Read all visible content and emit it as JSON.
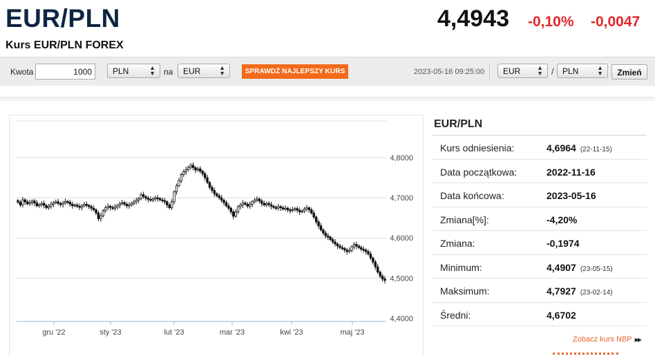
{
  "header": {
    "title": "EUR/PLN",
    "subtitle": "Kurs EUR/PLN FOREX",
    "price": "4,4943",
    "change_pct": "-0,10%",
    "change_abs": "-0,0047",
    "change_color": "#e0262b"
  },
  "toolbar": {
    "amount_label": "Kwota",
    "amount_value": "1000",
    "from_currency": "PLN",
    "na_label": "na",
    "to_currency": "EUR",
    "best_rate_button": "SPRAWDŹ NAJLEPSZY KURS",
    "best_rate_color": "#f26a1b",
    "timestamp": "2023-05-16 09:25:00",
    "pair_base": "EUR",
    "pair_sep": "/",
    "pair_quote": "PLN",
    "change_button": "Zmień"
  },
  "chart_data": {
    "type": "candlestick",
    "x_tick_labels": [
      "gru '22",
      "sty '23",
      "lut '23",
      "mar '23",
      "kwi '23",
      "maj '23"
    ],
    "y_tick_labels": [
      "4,8000",
      "4,7000",
      "4,6000",
      "4,5000",
      "4,4000"
    ],
    "ylim": [
      4.4,
      4.8
    ],
    "grid": true,
    "x_start": "2022-11-16",
    "x_end": "2023-05-16",
    "close_series": [
      4.689,
      4.682,
      4.695,
      4.69,
      4.685,
      4.688,
      4.692,
      4.687,
      4.68,
      4.683,
      4.686,
      4.681,
      4.675,
      4.679,
      4.684,
      4.688,
      4.69,
      4.686,
      4.683,
      4.687,
      4.691,
      4.689,
      4.684,
      4.68,
      4.682,
      4.679,
      4.676,
      4.68,
      4.684,
      4.681,
      4.678,
      4.674,
      4.67,
      4.662,
      4.648,
      4.655,
      4.668,
      4.675,
      4.679,
      4.676,
      4.673,
      4.677,
      4.681,
      4.685,
      4.688,
      4.684,
      4.68,
      4.682,
      4.686,
      4.69,
      4.694,
      4.698,
      4.708,
      4.703,
      4.699,
      4.696,
      4.694,
      4.697,
      4.7,
      4.698,
      4.695,
      4.693,
      4.69,
      4.682,
      4.675,
      4.69,
      4.715,
      4.73,
      4.742,
      4.758,
      4.765,
      4.77,
      4.776,
      4.781,
      4.775,
      4.769,
      4.772,
      4.766,
      4.76,
      4.75,
      4.738,
      4.726,
      4.718,
      4.71,
      4.705,
      4.7,
      4.694,
      4.688,
      4.68,
      4.674,
      4.665,
      4.654,
      4.665,
      4.678,
      4.682,
      4.687,
      4.684,
      4.679,
      4.684,
      4.69,
      4.694,
      4.697,
      4.692,
      4.686,
      4.682,
      4.686,
      4.683,
      4.679,
      4.676,
      4.674,
      4.678,
      4.675,
      4.672,
      4.674,
      4.67,
      4.668,
      4.671,
      4.673,
      4.669,
      4.665,
      4.667,
      4.672,
      4.675,
      4.67,
      4.662,
      4.652,
      4.64,
      4.63,
      4.62,
      4.612,
      4.605,
      4.602,
      4.596,
      4.59,
      4.585,
      4.58,
      4.576,
      4.574,
      4.57,
      4.566,
      4.569,
      4.578,
      4.584,
      4.58,
      4.576,
      4.572,
      4.57,
      4.566,
      4.56,
      4.55,
      4.54,
      4.528,
      4.515,
      4.505,
      4.498,
      4.494
    ]
  },
  "stats": {
    "title": "EUR/PLN",
    "rows": [
      {
        "key": "Kurs odniesienia:",
        "value": "4,6964",
        "date": "(22-11-15)"
      },
      {
        "key": "Data początkowa:",
        "value": "2022-11-16",
        "date": ""
      },
      {
        "key": "Data końcowa:",
        "value": "2023-05-16",
        "date": ""
      },
      {
        "key": "Zmiana[%]:",
        "value": "-4,20%",
        "date": ""
      },
      {
        "key": "Zmiana:",
        "value": "-0,1974",
        "date": ""
      },
      {
        "key": "Minimum:",
        "value": "4,4907",
        "date": "(23-05-15)"
      },
      {
        "key": "Maksimum:",
        "value": "4,7927",
        "date": "(23-02-14)"
      },
      {
        "key": "Średni:",
        "value": "4,6702",
        "date": ""
      }
    ],
    "nbp_link": "Zobacz kurs NBP"
  }
}
